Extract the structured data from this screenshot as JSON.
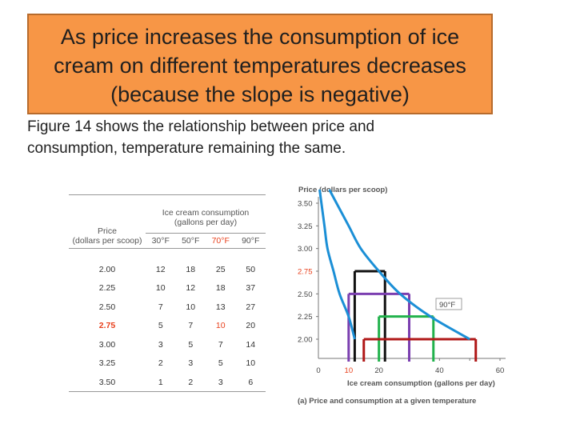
{
  "slide": {
    "title_lines": [
      "As price increases the consumption of ice",
      "cream on different temperatures decreases",
      "(because the slope is negative)"
    ],
    "caption_lines": [
      "Figure 14  shows the relationship between price and",
      "consumption, temperature remaining the same."
    ]
  },
  "table": {
    "price_header": [
      "Price",
      "(dollars per scoop)"
    ],
    "consumption_header": [
      "Ice cream consumption",
      "(gallons per day)"
    ],
    "columns": [
      "30°F",
      "50°F",
      "70°F",
      "90°F"
    ],
    "rows": [
      {
        "price": "2.00",
        "values": [
          "12",
          "18",
          "25",
          "50"
        ]
      },
      {
        "price": "2.25",
        "values": [
          "10",
          "12",
          "18",
          "37"
        ]
      },
      {
        "price": "2.50",
        "values": [
          "7",
          "10",
          "13",
          "27"
        ]
      },
      {
        "price": "2.75",
        "values": [
          "5",
          "7",
          "10",
          "20"
        ]
      },
      {
        "price": "3.00",
        "values": [
          "3",
          "5",
          "7",
          "14"
        ]
      },
      {
        "price": "3.25",
        "values": [
          "2",
          "3",
          "5",
          "10"
        ]
      },
      {
        "price": "3.50",
        "values": [
          "1",
          "2",
          "3",
          "6"
        ]
      }
    ],
    "highlight_color": "#e8401c"
  },
  "chart_data": {
    "type": "line",
    "title": "",
    "ylabel": "Price (dollars per scoop)",
    "xlabel": "Ice cream consumption (gallons per day)",
    "caption": "(a)  Price and consumption at a given temperature",
    "xlim": [
      0,
      60
    ],
    "ylim": [
      1.75,
      3.5
    ],
    "xticks": [
      "0",
      "10",
      "20",
      "40",
      "60"
    ],
    "yticks": [
      "3.50",
      "3.25",
      "3.00",
      "2.75",
      "2.50",
      "2.25",
      "2.00"
    ],
    "highlight_tick": "2.75",
    "curve_label": "90°F",
    "curve_color": "#1b8fd6",
    "series": [
      {
        "x": [
          1,
          2,
          3,
          5,
          7,
          10,
          12
        ],
        "y": [
          3.5,
          3.25,
          3.0,
          2.75,
          2.5,
          2.25,
          2.0
        ]
      },
      {
        "x": [
          6,
          10,
          14,
          20,
          27,
          37,
          50
        ],
        "y": [
          3.5,
          3.25,
          3.0,
          2.75,
          2.5,
          2.25,
          2.0
        ]
      }
    ],
    "steps": [
      {
        "price": 2.75,
        "x_from": 12,
        "x_to": 22,
        "color": "#111111"
      },
      {
        "price": 2.5,
        "x_from": 10,
        "x_to": 30,
        "color": "#7b3fb0"
      },
      {
        "price": 2.25,
        "x_from": 20,
        "x_to": 38,
        "color": "#22b24c"
      },
      {
        "price": 2.0,
        "x_from": 15,
        "x_to": 52,
        "color": "#b01818"
      }
    ]
  }
}
